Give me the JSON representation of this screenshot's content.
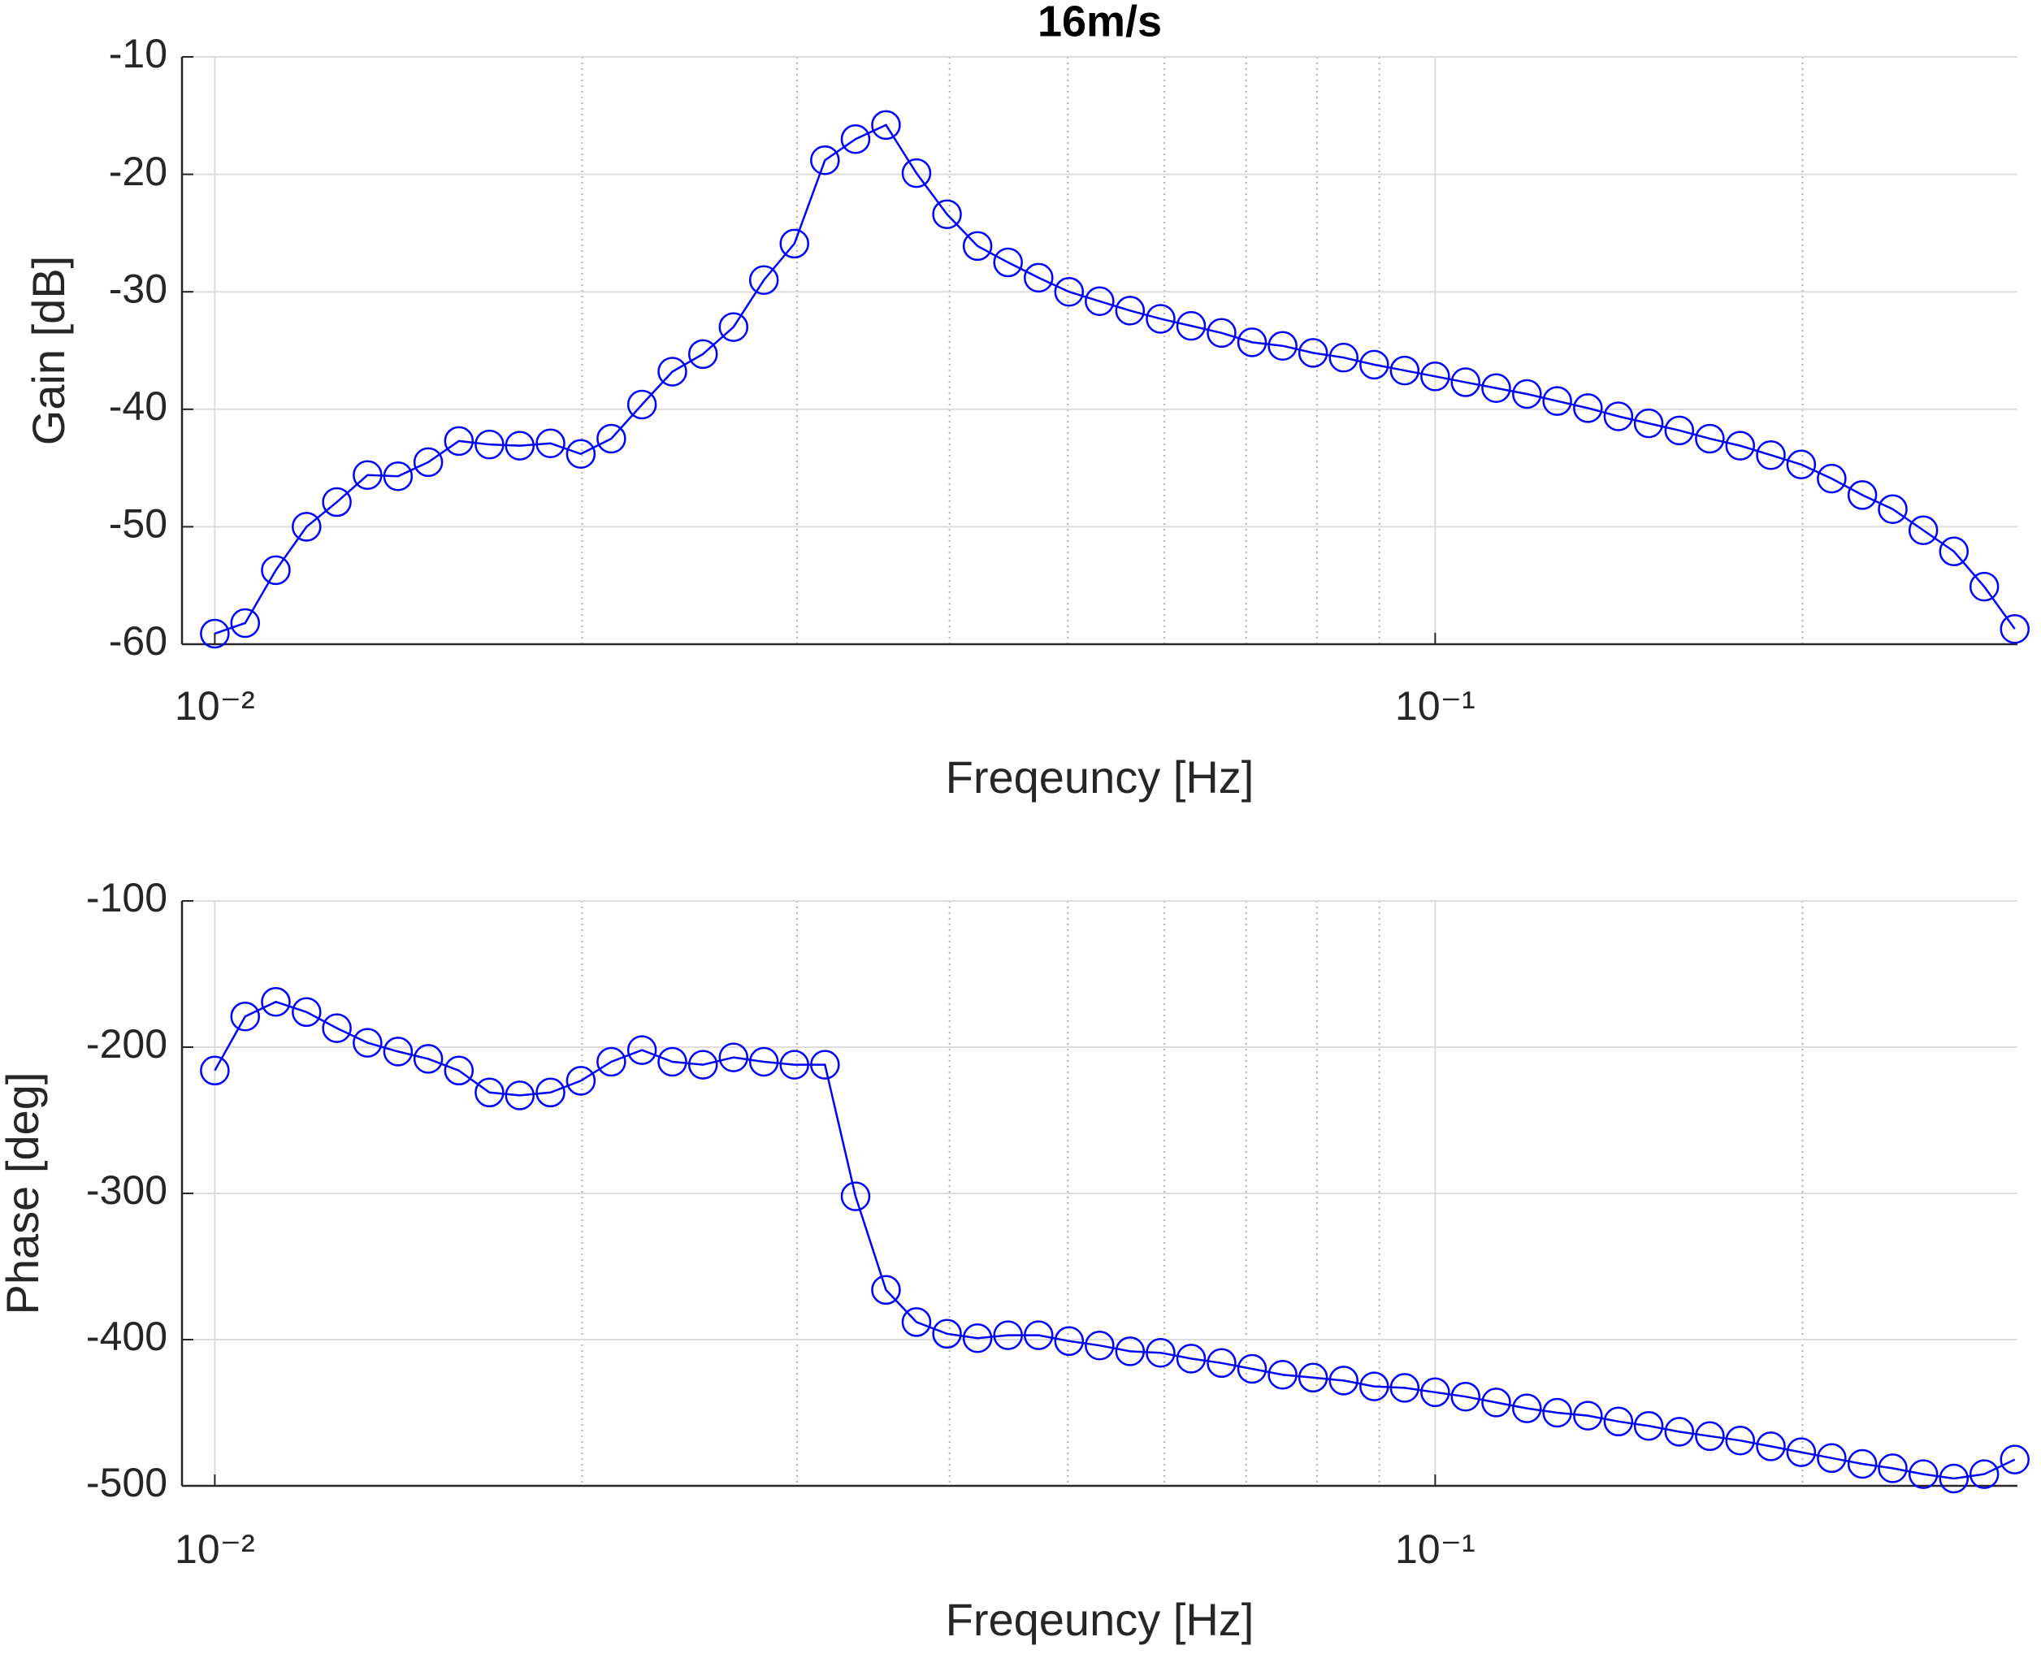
{
  "chart_data": [
    {
      "type": "line",
      "title": "16m/s",
      "xlabel": "Freqeuncy [Hz]",
      "ylabel": "Gain [dB]",
      "xscale": "log",
      "grid": true,
      "xlim": [
        0.0094,
        0.3
      ],
      "xticks": [
        {
          "value": 0.01,
          "label": "10⁻²"
        },
        {
          "value": 0.1,
          "label": "10⁻¹"
        }
      ],
      "xminorticks": [
        0.02,
        0.03,
        0.04,
        0.05,
        0.06,
        0.07,
        0.08,
        0.09,
        0.2
      ],
      "ylim": [
        -60,
        -10
      ],
      "yticks": [
        -60,
        -50,
        -40,
        -30,
        -20,
        -10
      ],
      "x": [
        0.01,
        0.01059,
        0.01122,
        0.01189,
        0.01259,
        0.01334,
        0.01413,
        0.01496,
        0.01585,
        0.01679,
        0.01778,
        0.01884,
        0.01995,
        0.02113,
        0.02239,
        0.02371,
        0.02512,
        0.02661,
        0.02818,
        0.02985,
        0.03162,
        0.0335,
        0.03548,
        0.03758,
        0.03981,
        0.04217,
        0.04467,
        0.04732,
        0.05012,
        0.05309,
        0.05623,
        0.05957,
        0.0631,
        0.06683,
        0.07079,
        0.07499,
        0.07943,
        0.08414,
        0.08913,
        0.09441,
        0.1,
        0.1059,
        0.1122,
        0.1189,
        0.1259,
        0.1334,
        0.1413,
        0.1496,
        0.1585,
        0.1679,
        0.1778,
        0.1884,
        0.1995,
        0.2113,
        0.2239,
        0.2371,
        0.2512,
        0.2661,
        0.2818,
        0.2985
      ],
      "series": [
        {
          "color": "#0000ff",
          "marker": "circle",
          "values": [
            -59.1,
            -58.2,
            -53.7,
            -50.0,
            -47.9,
            -45.6,
            -45.7,
            -44.5,
            -42.7,
            -43.0,
            -43.1,
            -42.9,
            -43.8,
            -42.5,
            -39.6,
            -36.8,
            -35.3,
            -33.0,
            -29.0,
            -25.9,
            -18.8,
            -17.0,
            -15.8,
            -19.9,
            -23.4,
            -26.1,
            -27.5,
            -28.8,
            -30.0,
            -30.8,
            -31.6,
            -32.3,
            -32.9,
            -33.5,
            -34.3,
            -34.6,
            -35.2,
            -35.6,
            -36.2,
            -36.7,
            -37.2,
            -37.7,
            -38.2,
            -38.7,
            -39.3,
            -39.9,
            -40.6,
            -41.2,
            -41.8,
            -42.5,
            -43.1,
            -43.9,
            -44.7,
            -45.9,
            -47.3,
            -48.5,
            -50.3,
            -52.1,
            -55.1,
            -58.7
          ]
        }
      ]
    },
    {
      "type": "line",
      "xlabel": "Freqeuncy [Hz]",
      "ylabel": "Phase [deg]",
      "xscale": "log",
      "grid": true,
      "xlim": [
        0.0094,
        0.3
      ],
      "xticks": [
        {
          "value": 0.01,
          "label": "10⁻²"
        },
        {
          "value": 0.1,
          "label": "10⁻¹"
        }
      ],
      "xminorticks": [
        0.02,
        0.03,
        0.04,
        0.05,
        0.06,
        0.07,
        0.08,
        0.09,
        0.2
      ],
      "ylim": [
        -500,
        -100
      ],
      "yticks": [
        -500,
        -400,
        -300,
        -200,
        -100
      ],
      "x": [
        0.01,
        0.01059,
        0.01122,
        0.01189,
        0.01259,
        0.01334,
        0.01413,
        0.01496,
        0.01585,
        0.01679,
        0.01778,
        0.01884,
        0.01995,
        0.02113,
        0.02239,
        0.02371,
        0.02512,
        0.02661,
        0.02818,
        0.02985,
        0.03162,
        0.0335,
        0.03548,
        0.03758,
        0.03981,
        0.04217,
        0.04467,
        0.04732,
        0.05012,
        0.05309,
        0.05623,
        0.05957,
        0.0631,
        0.06683,
        0.07079,
        0.07499,
        0.07943,
        0.08414,
        0.08913,
        0.09441,
        0.1,
        0.1059,
        0.1122,
        0.1189,
        0.1259,
        0.1334,
        0.1413,
        0.1496,
        0.1585,
        0.1679,
        0.1778,
        0.1884,
        0.1995,
        0.2113,
        0.2239,
        0.2371,
        0.2512,
        0.2661,
        0.2818,
        0.2985
      ],
      "series": [
        {
          "color": "#0000ff",
          "marker": "circle",
          "values": [
            -216,
            -179,
            -169,
            -176,
            -187,
            -197,
            -203,
            -208,
            -216,
            -231,
            -233,
            -231,
            -223,
            -210,
            -202,
            -210,
            -212,
            -207,
            -210,
            -212,
            -212,
            -302,
            -366,
            -388,
            -396,
            -399,
            -397,
            -397,
            -401,
            -404,
            -408,
            -409,
            -413,
            -416,
            -420,
            -424,
            -426,
            -428,
            -432,
            -433,
            -436,
            -439,
            -443,
            -447,
            -450,
            -452,
            -456,
            -459,
            -463,
            -466,
            -469,
            -473,
            -477,
            -481,
            -485,
            -488,
            -492,
            -495,
            -492,
            -482
          ]
        }
      ]
    }
  ]
}
